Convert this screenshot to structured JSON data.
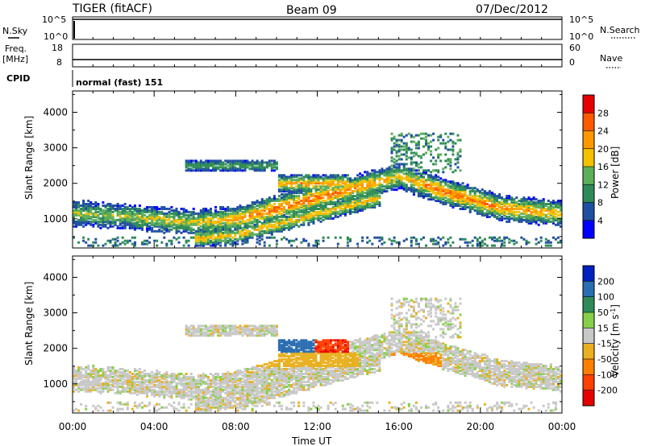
{
  "header": {
    "title": "TIGER (fitACF)",
    "beam": "Beam 09",
    "date": "07/Dec/2012"
  },
  "strips": {
    "nsky_label": "N.Sky",
    "nsky_ticks": [
      "10^5",
      "10^0"
    ],
    "nsearch_label": "N.Search",
    "nsearch_ticks": [
      "10^5",
      "10^0"
    ],
    "freq_label_1": "Freq.",
    "freq_label_2": "[MHz]",
    "freq_ticks": [
      "18",
      "8"
    ],
    "nave_label": "Nave",
    "nave_ticks": [
      "60",
      "0"
    ],
    "cpid_label": "CPID",
    "cpid_value": "normal (fast) 151"
  },
  "panels": {
    "ylabel": "Slant Range [km]",
    "yticks": [
      "4000",
      "3000",
      "2000",
      "1000"
    ],
    "xticks": [
      "00:00",
      "04:00",
      "08:00",
      "12:00",
      "16:00",
      "20:00",
      "00:00"
    ],
    "xlabel": "Time UT",
    "power_colorbar_label": "Power [dB]",
    "power_ticks": [
      "28",
      "24",
      "20",
      "16",
      "12",
      "8",
      "4"
    ],
    "velocity_colorbar_label": "Velocity [m s",
    "velocity_colorbar_sup": "-1",
    "velocity_colorbar_close": "]",
    "velocity_ticks": [
      "200",
      "100",
      "50",
      "15",
      "-15",
      "-50",
      "-100",
      "-200"
    ]
  },
  "colors": {
    "power_scale": [
      "#0000ff",
      "#1f4fa0",
      "#2e8b57",
      "#5dae5a",
      "#f2c200",
      "#ff9800",
      "#ff5a00",
      "#e60000"
    ],
    "velocity_scale": [
      "#0020c0",
      "#2a6db0",
      "#2e8b57",
      "#86d04a",
      "#c8c8c8",
      "#e8b020",
      "#ff7f00",
      "#ff4000",
      "#e60000"
    ]
  },
  "chart_data": [
    {
      "type": "heatmap",
      "ylabel": "Slant Range [km]",
      "xlabel": "",
      "ylim": [
        180,
        4600
      ],
      "xlim_hours": [
        0,
        24
      ],
      "colorbar": "Power [dB]",
      "colorbar_range": [
        0,
        32
      ],
      "features": [
        {
          "band_center_km": [
            1150,
            1100,
            1000,
            900,
            1000,
            1300,
            1600,
            1900,
            2200,
            1800,
            1300,
            1150
          ],
          "hours": [
            0,
            2,
            4,
            6,
            8,
            10,
            12,
            14,
            16,
            18,
            21,
            24
          ],
          "peak_power_db": [
            16,
            16,
            18,
            18,
            22,
            26,
            26,
            24,
            18,
            26,
            24,
            20
          ]
        }
      ]
    },
    {
      "type": "heatmap",
      "ylabel": "Slant Range [km]",
      "xlabel": "Time UT",
      "ylim": [
        180,
        4600
      ],
      "xlim_hours": [
        0,
        24
      ],
      "colorbar": "Velocity [m s-1]",
      "colorbar_range": [
        -250,
        250
      ]
    }
  ]
}
